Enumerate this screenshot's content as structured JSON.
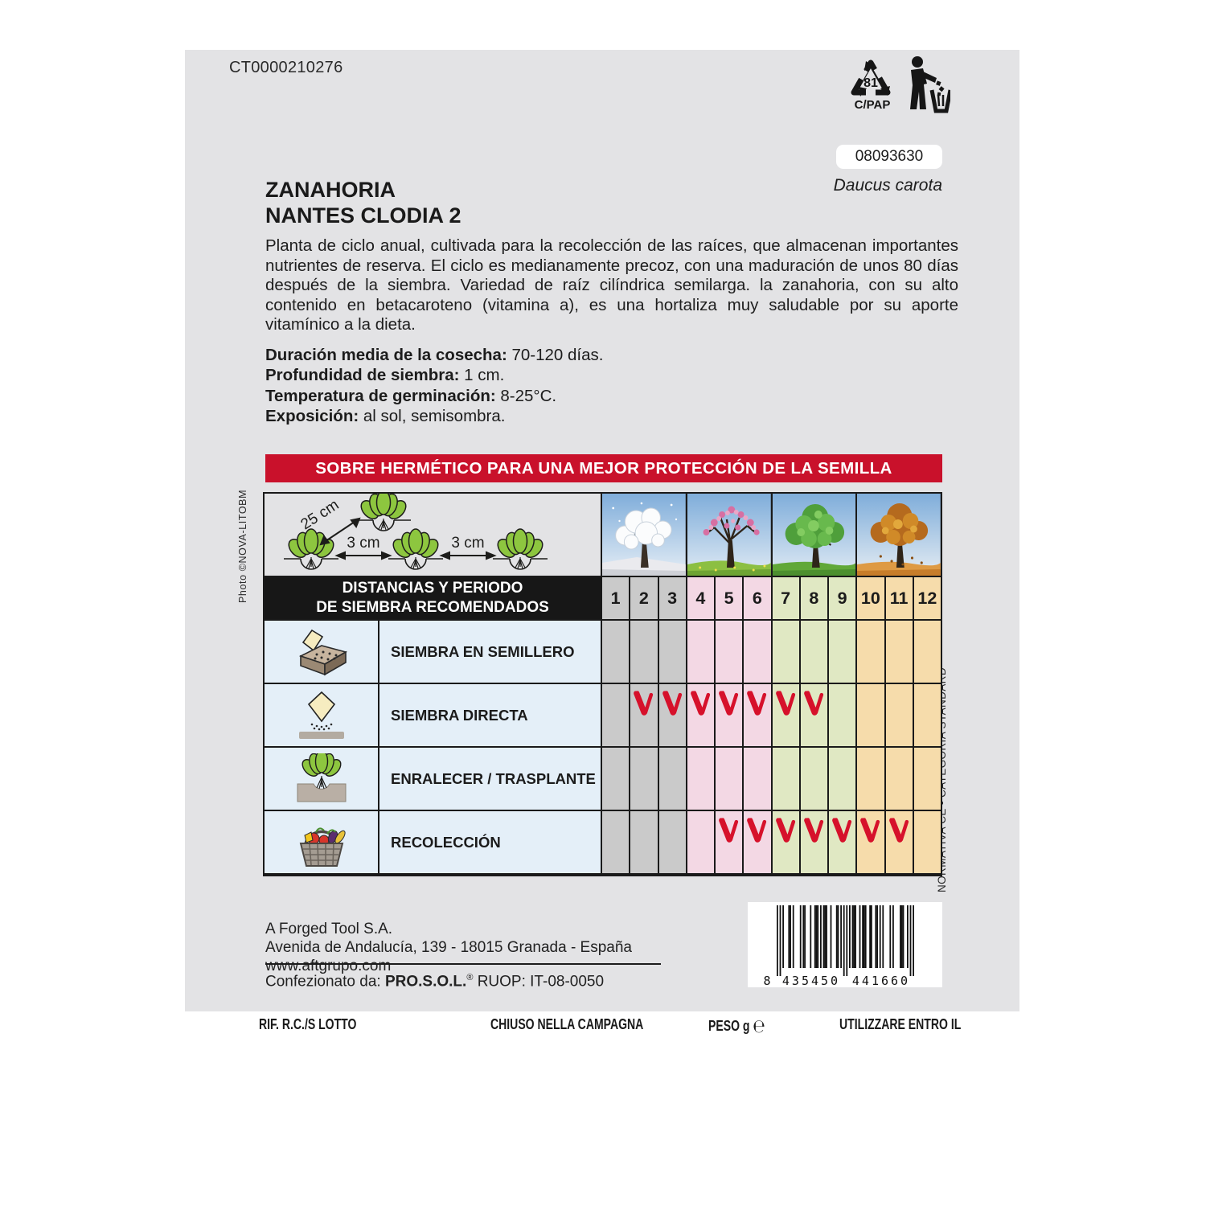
{
  "page": {
    "top_left_code": "CT0000210276",
    "batch_code": "08093630",
    "species_latin": "Daucus carota",
    "title_line1": "ZANAHORIA",
    "title_line2": "NANTES CLODIA 2",
    "description": "Planta de ciclo anual, cultivada para la recolección de las raíces, que almacenan importantes nutrientes de reserva. El ciclo es medianamente precoz, con una maduración de unos 80 días después de la siembra. Variedad de raíz cilíndrica semilarga. la zanahoria, con su alto contenido en betacaroteno (vitamina a), es una hortaliza muy saludable por su aporte vitamínico a la dieta."
  },
  "specs": [
    {
      "label": "Duración media de la cosecha:",
      "value": " 70-120 días."
    },
    {
      "label": "Profundidad de siembra:",
      "value": " 1 cm."
    },
    {
      "label": "Temperatura de germinación:",
      "value": " 8-25°C."
    },
    {
      "label": "Exposición:",
      "value": " al sol, semisombra."
    }
  ],
  "banner": {
    "text": "SOBRE HERMÉTICO PARA UNA MEJOR PROTECCIÓN DE LA SEMILLA",
    "bg": "#c9112b"
  },
  "photo_credit": "Photo ©NOVA-LITOBM",
  "normativa": "NORMATIVA CE - CATEGORIA STANDARD",
  "diagram": {
    "plant_spacing": "25 cm",
    "seed_spacing_1": "3 cm",
    "seed_spacing_2": "3 cm"
  },
  "recycling": {
    "code": "81",
    "material": "C/PAP"
  },
  "table": {
    "header_line1": "DISTANCIAS Y PERIODO",
    "header_line2": "DE SIEMBRA RECOMENDADOS",
    "months": [
      1,
      2,
      3,
      4,
      5,
      6,
      7,
      8,
      9,
      10,
      11,
      12
    ],
    "month_groups": [
      {
        "season": "winter",
        "months": [
          1,
          2,
          3
        ],
        "color": "#cacaca"
      },
      {
        "season": "spring",
        "months": [
          4,
          5,
          6
        ],
        "color": "#f3d8e4"
      },
      {
        "season": "summer",
        "months": [
          7,
          8,
          9
        ],
        "color": "#e0e8c3"
      },
      {
        "season": "autumn",
        "months": [
          10,
          11,
          12
        ],
        "color": "#f6dcab"
      }
    ],
    "check_color": "#d6112b",
    "rows": [
      {
        "label": "SIEMBRA EN SEMILLERO",
        "icon": "seed-tray-icon",
        "checked_months": []
      },
      {
        "label": "SIEMBRA DIRECTA",
        "icon": "direct-sowing-icon",
        "checked_months": [
          2,
          3,
          4,
          5,
          6,
          7,
          8
        ]
      },
      {
        "label": "ENRALECER / TRASPLANTE",
        "icon": "transplant-icon",
        "checked_months": []
      },
      {
        "label": "RECOLECCIÓN",
        "icon": "harvest-basket-icon",
        "checked_months": [
          5,
          6,
          7,
          8,
          9,
          10,
          11
        ]
      }
    ]
  },
  "address": {
    "company": "A Forged Tool S.A.",
    "street": "Avenida de Andalucía, 139 - 18015 Granada - España",
    "website": "www.aftgrupo.com"
  },
  "packer": {
    "label": "Confezionato da: ",
    "brand": "PRO.S.O.L.",
    "mark": "®",
    "info": " RUOP: IT-08-0050"
  },
  "barcode": {
    "digits": "8435450441660",
    "first": "8",
    "group1": "435450",
    "group2": "441660"
  },
  "footer": {
    "item1": "RIF. R.C./S LOTTO",
    "item2": "CHIUSO NELLA CAMPAGNA",
    "item3": "PESO g",
    "estimated_sign": "℮",
    "item4": "UTILIZZARE ENTRO IL"
  }
}
